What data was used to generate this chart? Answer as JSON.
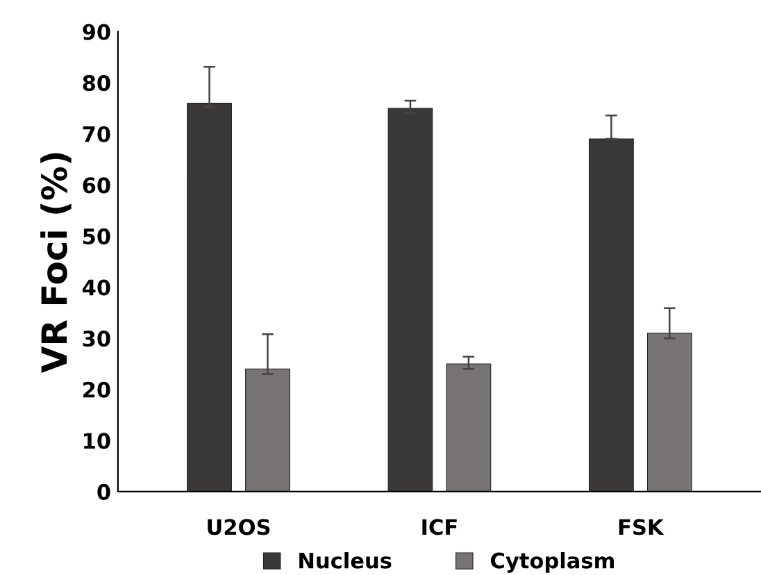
{
  "chart_data": {
    "type": "bar",
    "ylabel": "VR Foci (%)",
    "categories": [
      "U2OS",
      "ICF",
      "FSK"
    ],
    "series": [
      {
        "name": "Nucleus",
        "color": "#3b3938",
        "values": [
          76,
          75,
          69
        ],
        "errors": [
          [
            75.3,
            83.1
          ],
          [
            74.1,
            76.5
          ],
          [
            69,
            73.6
          ]
        ]
      },
      {
        "name": "Cytoplasm",
        "color": "#787473",
        "values": [
          24,
          25,
          31
        ],
        "errors": [
          [
            23,
            30.8
          ],
          [
            24,
            26.4
          ],
          [
            30,
            35.9
          ]
        ]
      }
    ],
    "ylim": [
      0,
      90
    ],
    "yticks": [
      0,
      10,
      20,
      30,
      40,
      50,
      60,
      70,
      80,
      90
    ],
    "grid": false,
    "legend": "bottom"
  }
}
